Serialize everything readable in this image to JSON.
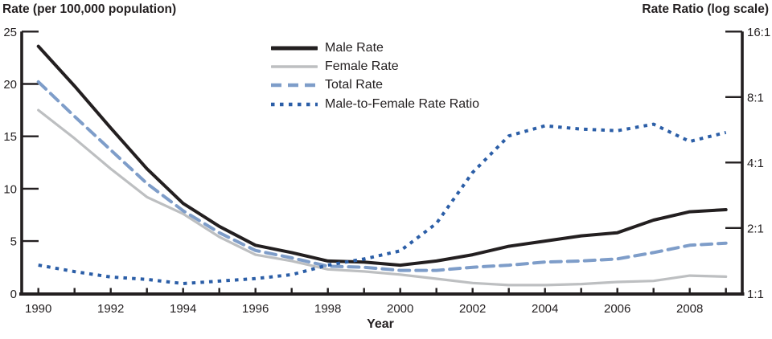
{
  "chart_data": {
    "type": "line",
    "title": "",
    "x_axis": {
      "title": "Year",
      "range": [
        1990,
        2009
      ],
      "labeled_ticks": [
        1990,
        1992,
        1994,
        1996,
        1998,
        2000,
        2002,
        2004,
        2006,
        2008
      ],
      "minor_ticks_every": 1
    },
    "left_axis": {
      "title": "Rate (per 100,000 population)",
      "scale": "linear",
      "range": [
        0,
        25
      ],
      "ticks": [
        0,
        5,
        10,
        15,
        20,
        25
      ]
    },
    "right_axis": {
      "title": "Rate Ratio (log scale)",
      "scale": "log2",
      "range": [
        1,
        16
      ],
      "tick_values": [
        1,
        2,
        4,
        8,
        16
      ],
      "tick_labels": [
        "1:1",
        "2:1",
        "4:1",
        "8:1",
        "16:1"
      ]
    },
    "years": [
      1990,
      1991,
      1992,
      1993,
      1994,
      1995,
      1996,
      1997,
      1998,
      1999,
      2000,
      2001,
      2002,
      2003,
      2004,
      2005,
      2006,
      2007,
      2008,
      2009
    ],
    "series": [
      {
        "name": "Male Rate",
        "axis": "left",
        "style": "solid",
        "color": "#231f20",
        "width": 4,
        "values": [
          23.6,
          19.8,
          15.8,
          11.9,
          8.6,
          6.4,
          4.6,
          3.9,
          3.1,
          3.0,
          2.7,
          3.1,
          3.7,
          4.5,
          5.0,
          5.5,
          5.8,
          7.0,
          7.8,
          8.0
        ]
      },
      {
        "name": "Female Rate",
        "axis": "left",
        "style": "solid",
        "color": "#bdbfc1",
        "width": 3.2,
        "values": [
          17.5,
          14.8,
          11.9,
          9.2,
          7.6,
          5.4,
          3.7,
          3.1,
          2.3,
          2.1,
          1.8,
          1.4,
          1.0,
          0.8,
          0.8,
          0.9,
          1.1,
          1.2,
          1.7,
          1.6
        ]
      },
      {
        "name": "Total Rate",
        "axis": "left",
        "style": "dashed",
        "color": "#7e9dc9",
        "width": 4,
        "values": [
          20.2,
          16.9,
          13.7,
          10.5,
          7.9,
          5.8,
          4.1,
          3.4,
          2.6,
          2.5,
          2.2,
          2.2,
          2.5,
          2.7,
          3.0,
          3.1,
          3.3,
          3.9,
          4.6,
          4.8
        ]
      },
      {
        "name": "Male-to-Female Rate Ratio",
        "axis": "right",
        "style": "dotted",
        "color": "#2b5ea7",
        "width": 4,
        "values": [
          1.35,
          1.26,
          1.19,
          1.16,
          1.11,
          1.14,
          1.17,
          1.22,
          1.35,
          1.44,
          1.57,
          2.1,
          3.6,
          5.3,
          5.9,
          5.7,
          5.6,
          6.0,
          5.0,
          5.5
        ]
      }
    ],
    "legend_position": "top-center",
    "grid": "off"
  }
}
